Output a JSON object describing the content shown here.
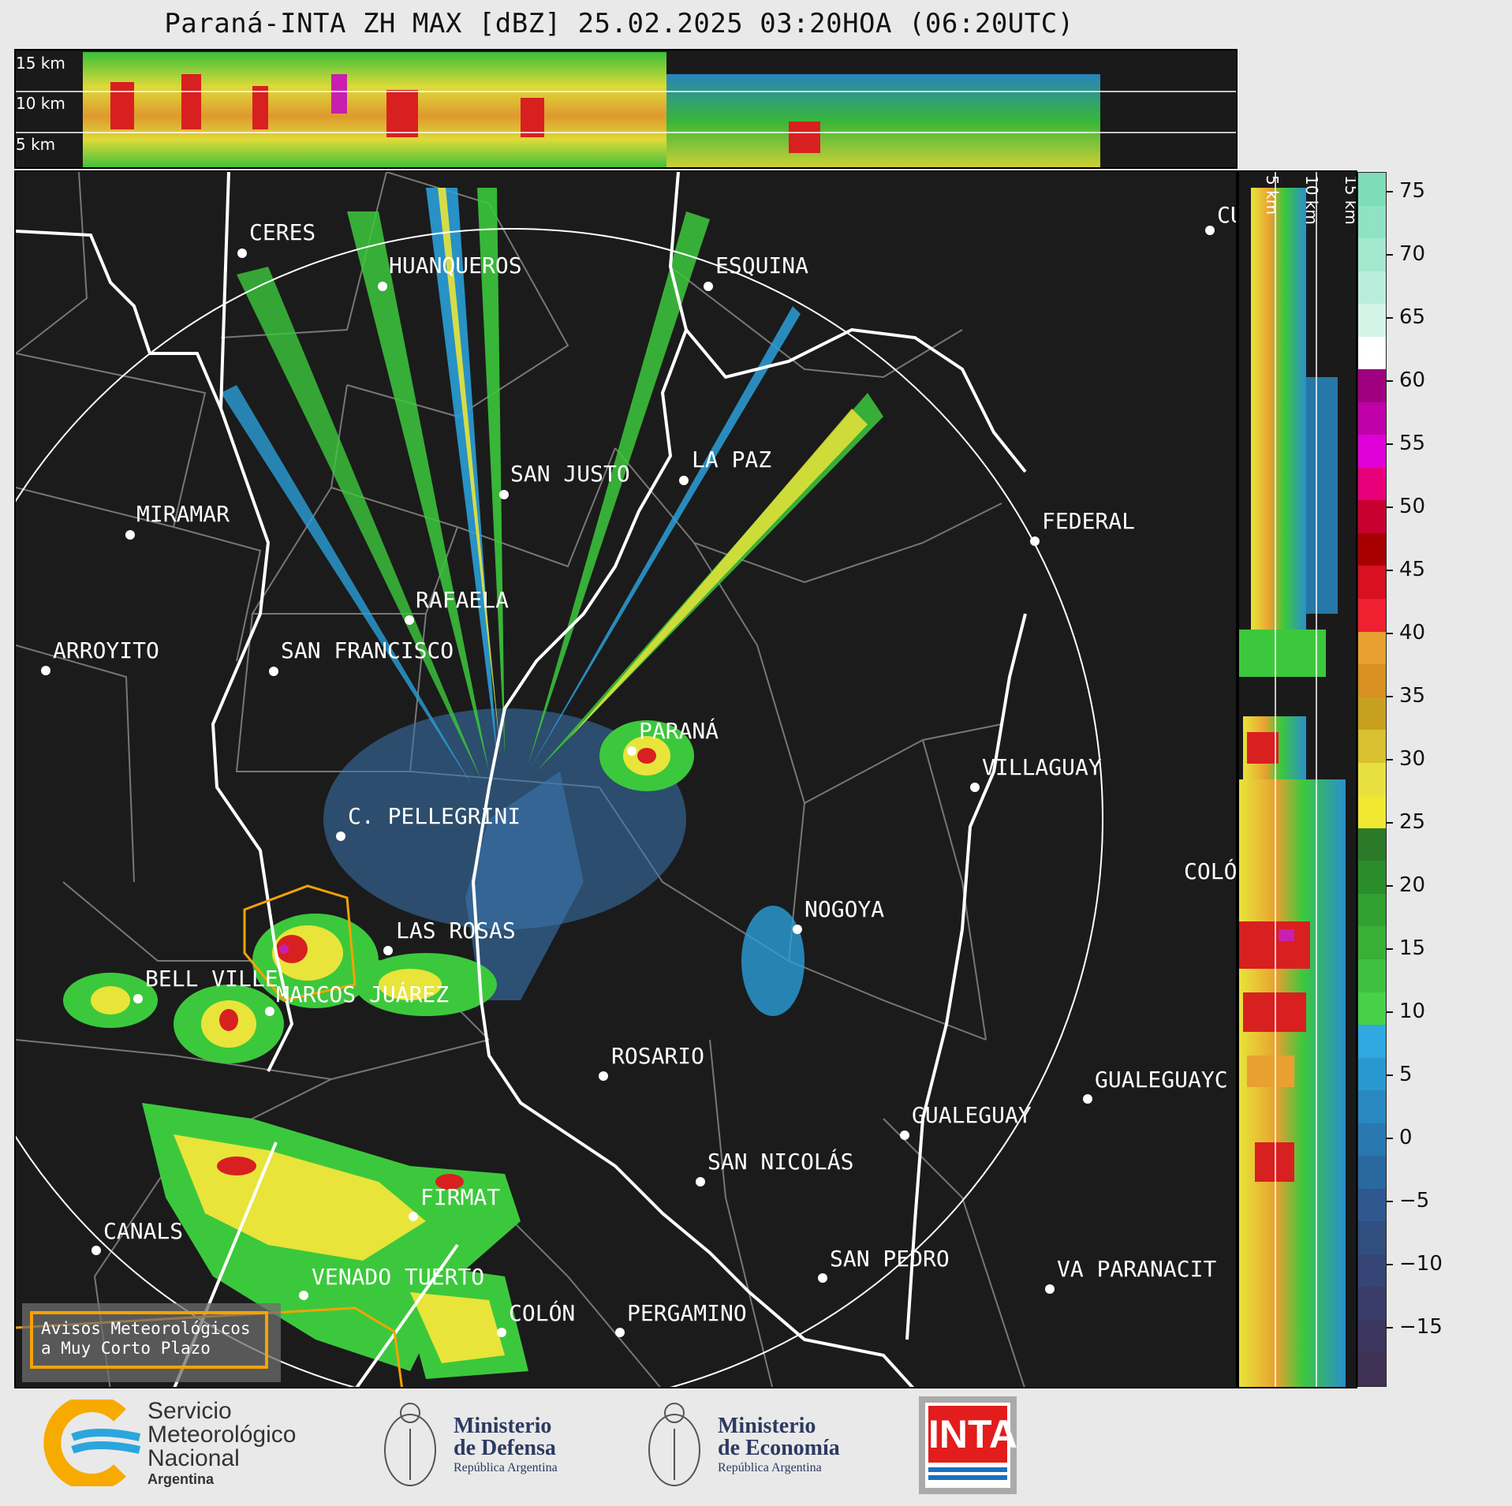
{
  "title": "Paraná-INTA ZH MAX [dBZ] 25.02.2025 03:20HOA (06:20UTC)",
  "top_panel": {
    "alt_labels": [
      "15 km",
      "10 km",
      "5 km"
    ]
  },
  "side_panel": {
    "alt_labels": [
      "5 km",
      "10 km",
      "15 km"
    ]
  },
  "colorbar": {
    "ticks": [
      "75",
      "70",
      "65",
      "60",
      "55",
      "50",
      "45",
      "40",
      "35",
      "30",
      "25",
      "20",
      "15",
      "10",
      "5",
      "0",
      "−5",
      "−10",
      "−15"
    ]
  },
  "cities": {
    "ceres": "CERES",
    "huanqueros": "HUANQUEROS",
    "esquina": "ESQUINA",
    "cu": "CU",
    "san_justo": "SAN JUSTO",
    "la_paz": "LA PAZ",
    "miramar": "MIRAMAR",
    "federal": "FEDERAL",
    "rafaela": "RAFAELA",
    "arroyito": "ARROYITO",
    "san_francisco": "SAN FRANCISCO",
    "parana": "PARANÁ",
    "villaguay": "VILLAGUAY",
    "c_pellegrini": "C. PELLEGRINI",
    "colon_er": "COLÓ",
    "nogoya": "NOGOYA",
    "las_rosas": "LAS ROSAS",
    "bell_ville": "BELL VILLE",
    "marcos_juarez": "MARCOS JUÁREZ",
    "rosario": "ROSARIO",
    "gualeguaych": "GUALEGUAYC",
    "gualeguay": "GUALEGUAY",
    "san_nicolas": "SAN NICOLÁS",
    "firmat": "FIRMAT",
    "canals": "CANALS",
    "san_pedro": "SAN PEDRO",
    "va_paranacit": "VA  PARANACIT",
    "venado_tuerto": "VENADO TUERTO",
    "colon_ba": "COLÓN",
    "pergamino": "PERGAMINO"
  },
  "warning": {
    "line1": "Avisos Meteorológicos",
    "line2": "a Muy Corto Plazo"
  },
  "logos": {
    "smn_line1": "Servicio",
    "smn_line2": "Meteorológico",
    "smn_line3": "Nacional",
    "smn_line4": "Argentina",
    "defensa_line1": "Ministerio",
    "defensa_line2": "de Defensa",
    "defensa_line3": "República Argentina",
    "economia_line1": "Ministerio",
    "economia_line2": "de Economía",
    "economia_line3": "República Argentina",
    "inta": "INTA"
  },
  "colors": {
    "background": "#e9e9e9",
    "map_bg": "#1b1b1b",
    "warning_orange": "#f5a300"
  }
}
